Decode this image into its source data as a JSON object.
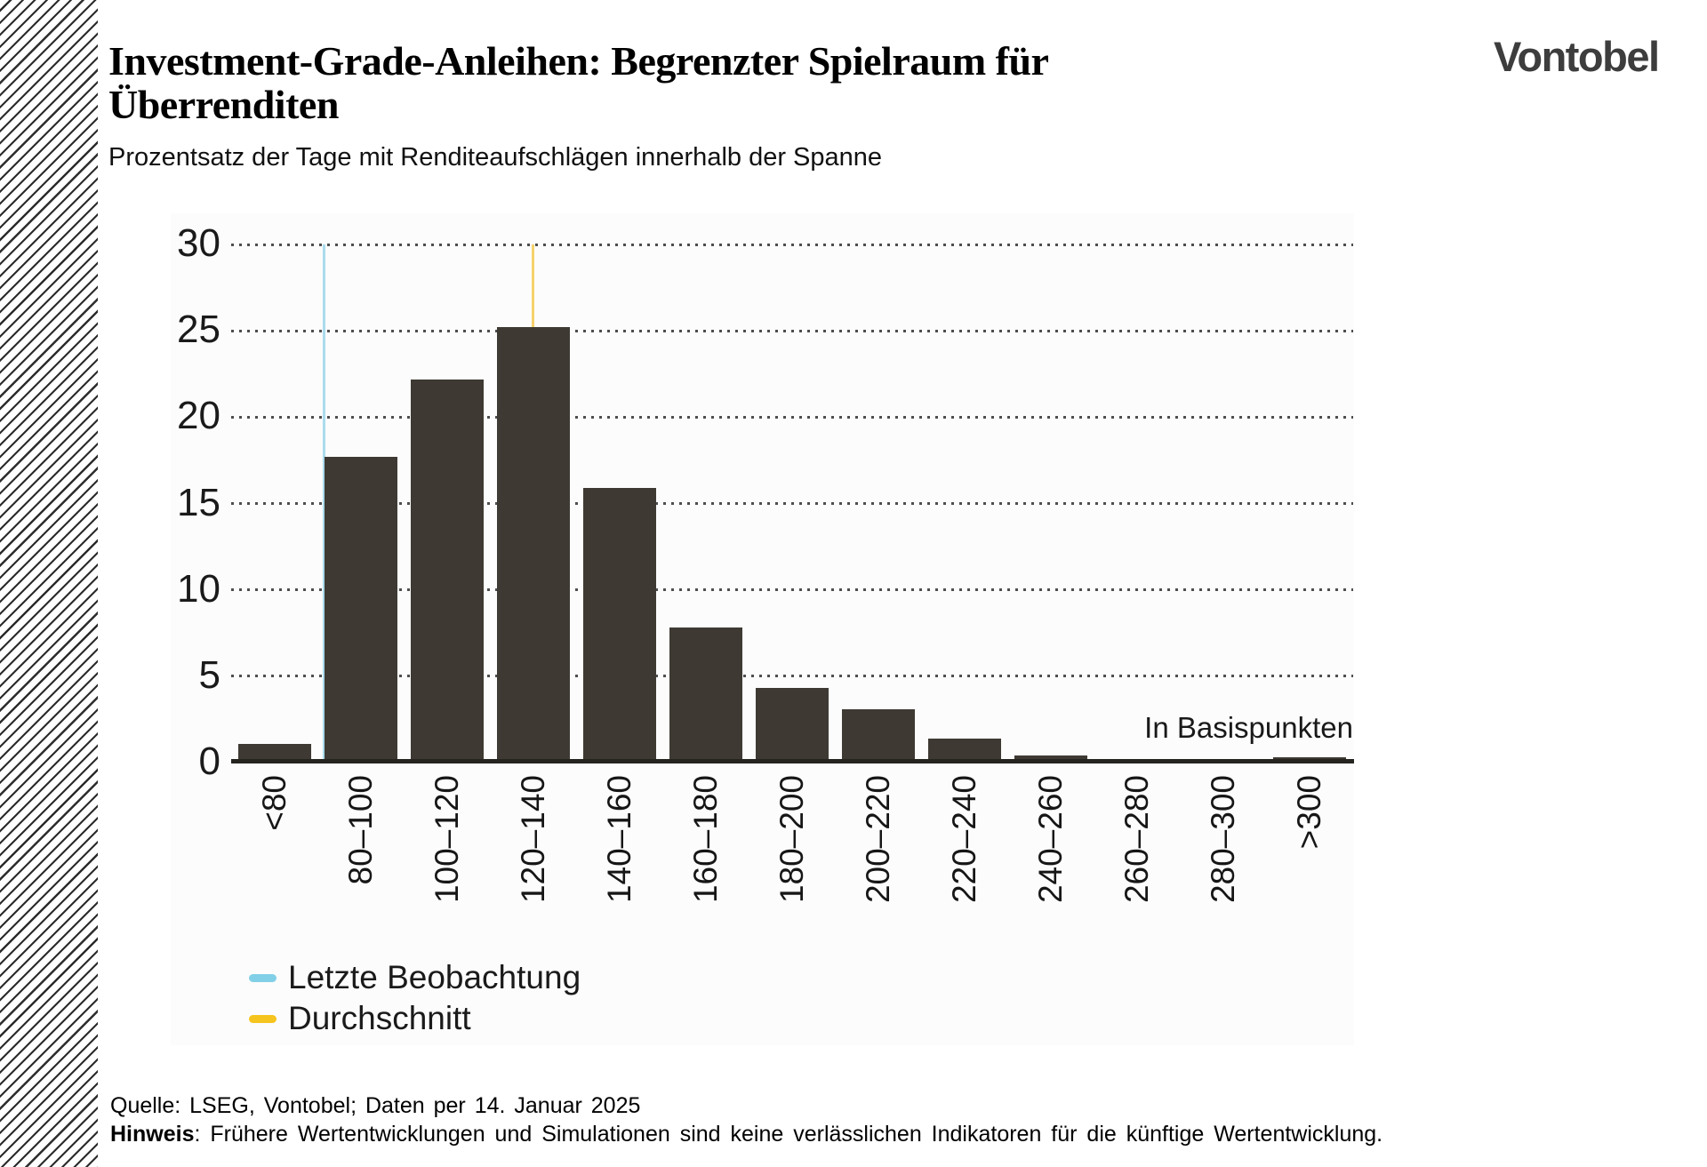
{
  "header": {
    "title_line1": "Investment-Grade-Anleihen: Begrenzter Spielraum für",
    "title_line2": "Überrenditen",
    "subtitle": "Prozentsatz der Tage mit Renditeaufschlägen innerhalb der Spanne",
    "logo_text": "Vontobel"
  },
  "chart_data": {
    "type": "bar",
    "title": "Investment-Grade-Anleihen: Begrenzter Spielraum für Überrenditen",
    "subtitle": "Prozentsatz der Tage mit Renditeaufschlägen innerhalb der Spanne",
    "categories": [
      "<80",
      "80–100",
      "100–120",
      "120–140",
      "140–160",
      "160–180",
      "180–200",
      "200–220",
      "220–240",
      "240–260",
      "260–280",
      "280–300",
      ">300"
    ],
    "values": [
      1.1,
      17.7,
      22.2,
      25.2,
      15.9,
      7.8,
      4.3,
      3.1,
      1.4,
      0.4,
      0.2,
      0.2,
      0.3
    ],
    "unit_label": "In Basispunkten",
    "ylabel": "",
    "y_ticks": [
      0,
      5,
      10,
      15,
      20,
      25,
      30
    ],
    "ylim": [
      0,
      30
    ],
    "grid": "horizontal-dotted",
    "bar_color": "#3e3a33",
    "axis_color": "#26241f",
    "markers": [
      {
        "name": "letzte-beobachtung",
        "label": "Letzte Beobachtung",
        "swatch_color": "#82d0e8",
        "line_color": "#aadcee",
        "value_bp": 80,
        "position": {
          "bar_index": 1,
          "anchor": "left-edge"
        }
      },
      {
        "name": "durchschnitt",
        "label": "Durchschnitt",
        "swatch_color": "#f5c41e",
        "line_color": "#f6d26b",
        "line_color_over_bar": "#8b8253",
        "value_bp": 130,
        "position": {
          "bar_index": 3,
          "anchor": "center"
        }
      }
    ],
    "legend_position": "bottom-left"
  },
  "footer": {
    "source": "Quelle: LSEG, Vontobel; Daten per 14. Januar 2025",
    "note_label": "Hinweis",
    "note_text": ": Frühere Wertentwicklungen und Simulationen sind keine verlässlichen Indikatoren für die künftige Wertentwicklung."
  }
}
